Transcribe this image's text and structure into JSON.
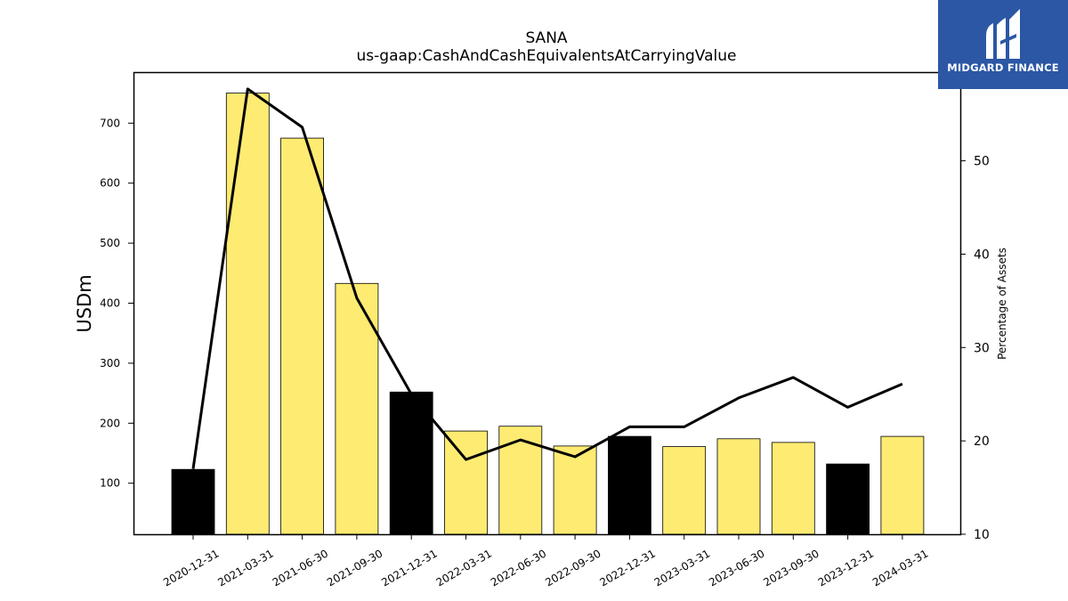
{
  "brand": {
    "logo_text": "MIDGARD FINANCE"
  },
  "chart_data": {
    "type": "bar",
    "title": "SANA",
    "subtitle": "us-gaap:CashAndCashEquivalentsAtCarryingValue",
    "ylabel": "USDm",
    "y2label": "Percentage of Assets",
    "categories": [
      "2020-12-31",
      "2021-03-31",
      "2021-06-30",
      "2021-09-30",
      "2021-12-31",
      "2022-03-31",
      "2022-06-30",
      "2022-09-30",
      "2022-12-31",
      "2023-03-31",
      "2023-06-30",
      "2023-09-30",
      "2023-12-31",
      "2024-03-31"
    ],
    "series": [
      {
        "type": "bar",
        "values": [
          123,
          750,
          675,
          433,
          252,
          187,
          195,
          162,
          178,
          161,
          174,
          168,
          132,
          178
        ],
        "colors": [
          "#000000",
          "#fdeb72",
          "#fdeb72",
          "#fdeb72",
          "#000000",
          "#fdeb72",
          "#fdeb72",
          "#fdeb72",
          "#000000",
          "#fdeb72",
          "#fdeb72",
          "#fdeb72",
          "#000000",
          "#fdeb72"
        ]
      },
      {
        "type": "line",
        "axis": "right",
        "values": [
          17.0,
          57.7,
          53.6,
          35.3,
          25.0,
          18.0,
          20.1,
          18.3,
          21.5,
          21.5,
          24.6,
          26.8,
          23.6,
          26.1
        ]
      }
    ],
    "yticks": [
      100,
      200,
      300,
      400,
      500,
      600,
      700
    ],
    "y2ticks": [
      10,
      20,
      30,
      40,
      50
    ],
    "ylim": [
      15,
      785
    ],
    "y2lim": [
      10,
      59.5
    ],
    "grid": false
  }
}
